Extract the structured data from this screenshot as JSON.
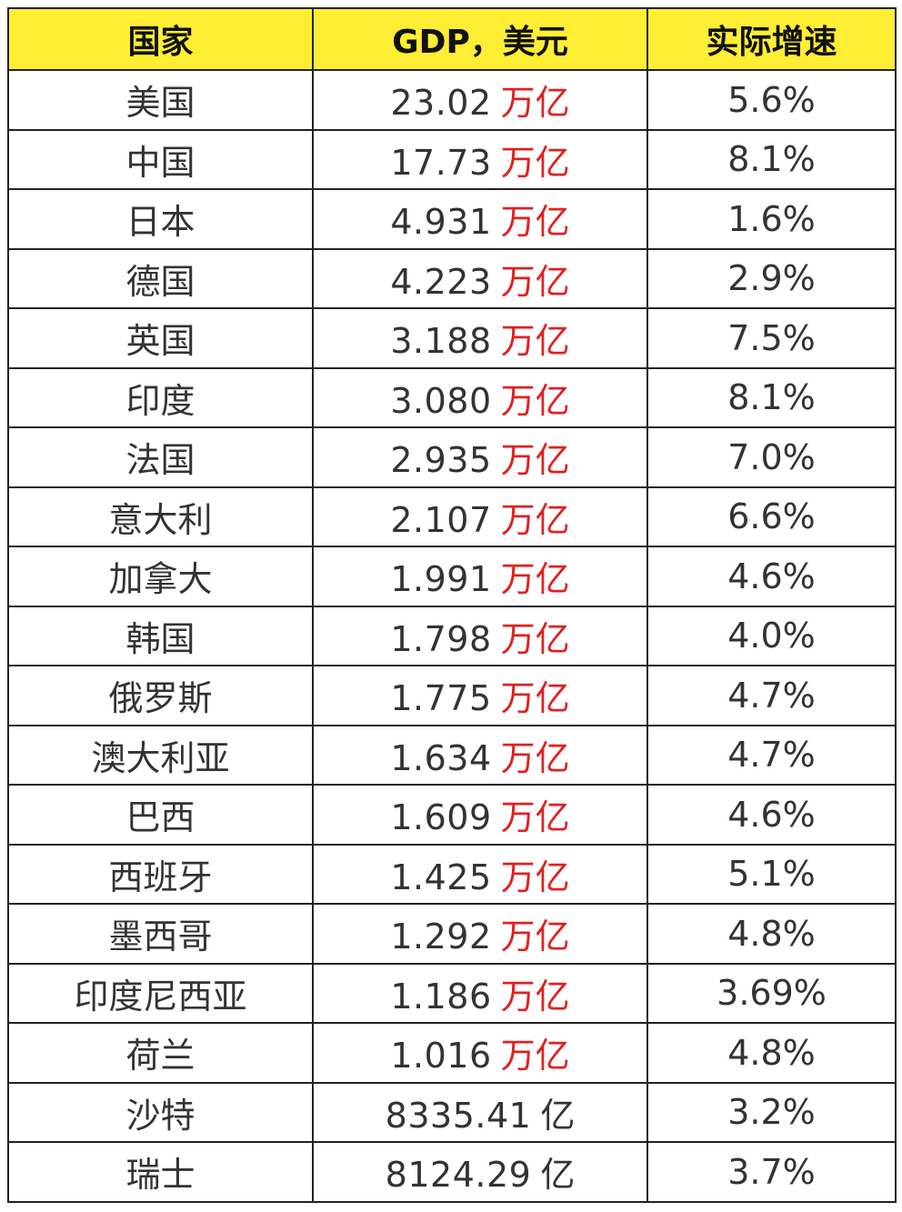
{
  "table": {
    "headers": [
      "国家",
      "GDP，美元",
      "实际增速"
    ],
    "rows": [
      {
        "country": "美国",
        "gdp": "23.02",
        "unit": "万亿",
        "growth": "5.6%"
      },
      {
        "country": "中国",
        "gdp": "17.73",
        "unit": "万亿",
        "growth": "8.1%"
      },
      {
        "country": "日本",
        "gdp": "4.931",
        "unit": "万亿",
        "growth": "1.6%"
      },
      {
        "country": "德国",
        "gdp": "4.223",
        "unit": "万亿",
        "growth": "2.9%"
      },
      {
        "country": "英国",
        "gdp": "3.188",
        "unit": "万亿",
        "growth": "7.5%"
      },
      {
        "country": "印度",
        "gdp": "3.080",
        "unit": "万亿",
        "growth": "8.1%"
      },
      {
        "country": "法国",
        "gdp": "2.935",
        "unit": "万亿",
        "growth": "7.0%"
      },
      {
        "country": "意大利",
        "gdp": "2.107",
        "unit": "万亿",
        "growth": "6.6%"
      },
      {
        "country": "加拿大",
        "gdp": "1.991",
        "unit": "万亿",
        "growth": "4.6%"
      },
      {
        "country": "韩国",
        "gdp": "1.798",
        "unit": "万亿",
        "growth": "4.0%"
      },
      {
        "country": "俄罗斯",
        "gdp": "1.775",
        "unit": "万亿",
        "growth": "4.7%"
      },
      {
        "country": "澳大利亚",
        "gdp": "1.634",
        "unit": "万亿",
        "growth": "4.7%"
      },
      {
        "country": "巴西",
        "gdp": "1.609",
        "unit": "万亿",
        "growth": "4.6%"
      },
      {
        "country": "西班牙",
        "gdp": "1.425",
        "unit": "万亿",
        "growth": "5.1%"
      },
      {
        "country": "墨西哥",
        "gdp": "1.292",
        "unit": "万亿",
        "growth": "4.8%"
      },
      {
        "country": "印度尼西亚",
        "gdp": "1.186",
        "unit": "万亿",
        "growth": "3.69%"
      },
      {
        "country": "荷兰",
        "gdp": "1.016",
        "unit": "万亿",
        "growth": "4.8%"
      },
      {
        "country": "沙特",
        "gdp": "8335.41",
        "unit": "亿",
        "growth": "3.2%"
      },
      {
        "country": "瑞士",
        "gdp": "8124.29",
        "unit": "亿",
        "growth": "3.7%"
      }
    ]
  },
  "colors": {
    "header_bg": "#ffee33",
    "unit_trillion": "#e02020",
    "unit_hundred_million": "#333333",
    "grid": "#222222"
  }
}
